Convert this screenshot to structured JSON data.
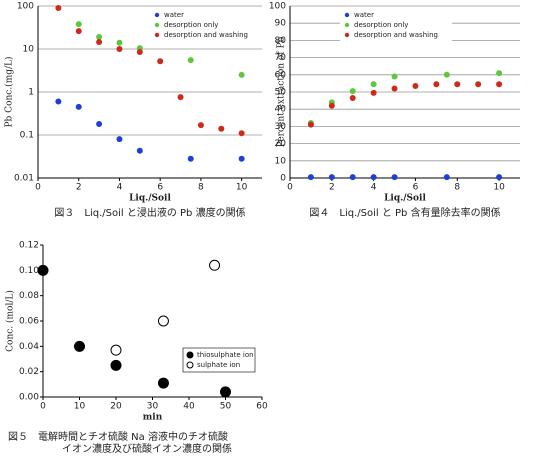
{
  "chart_data": [
    {
      "type": "scatter",
      "x_label": "Liq./Soil",
      "y_label": "Pb Conc.(mg/L)",
      "caption": "図３　Liq./Soil と浸出液の Pb 濃度の関係",
      "xlim": [
        0,
        11
      ],
      "xticks": [
        0,
        2,
        4,
        6,
        8,
        10
      ],
      "ylim": [
        0.01,
        100
      ],
      "yticks": [
        0.01,
        0.1,
        1,
        10,
        100
      ],
      "log_y": true,
      "grid": true,
      "legend": "upper right",
      "series": [
        {
          "name": "water",
          "color": "#1f3fd6",
          "x": [
            1,
            2,
            3,
            4,
            5,
            7.5,
            10
          ],
          "values": [
            0.6,
            0.45,
            0.18,
            0.08,
            0.043,
            0.028,
            0.028
          ]
        },
        {
          "name": "desorption only",
          "color": "#5cc83c",
          "x": [
            2,
            3,
            4,
            5,
            7.5,
            10
          ],
          "values": [
            38,
            19,
            14,
            10.5,
            5.5,
            2.5
          ]
        },
        {
          "name": "desorption and washing",
          "color": "#cc2a1a",
          "x": [
            1,
            2,
            3,
            4,
            5,
            6,
            7,
            8,
            9,
            10
          ],
          "values": [
            90,
            26,
            14.5,
            10,
            8.5,
            5.2,
            0.76,
            0.17,
            0.14,
            0.11
          ]
        }
      ]
    },
    {
      "type": "scatter",
      "x_label": "Liq./Soil",
      "y_label": "Percent extraction of Pb",
      "caption": "図４　Liq./Soil と Pb 含有量除去率の関係",
      "xlim": [
        0,
        11
      ],
      "xticks": [
        0,
        2,
        4,
        6,
        8,
        10
      ],
      "ylim": [
        0,
        100
      ],
      "yticks": [
        0,
        10,
        20,
        30,
        40,
        50,
        60,
        70,
        80,
        90,
        100
      ],
      "grid": true,
      "legend": "upper left",
      "series": [
        {
          "name": "water",
          "color": "#1f3fd6",
          "x": [
            1,
            2,
            3,
            4,
            5,
            7.5,
            10
          ],
          "values": [
            0.5,
            0.5,
            0.5,
            0.5,
            0.5,
            0.5,
            0.5
          ]
        },
        {
          "name": "desorption only",
          "color": "#5cc83c",
          "x": [
            1,
            2,
            3,
            4,
            5,
            7.5,
            10
          ],
          "values": [
            32,
            44,
            50.5,
            54.5,
            59,
            60,
            61
          ]
        },
        {
          "name": "desorption and washing",
          "color": "#cc2a1a",
          "x": [
            1,
            2,
            3,
            4,
            5,
            6,
            7,
            8,
            9,
            10
          ],
          "values": [
            31,
            42,
            46.5,
            49.5,
            52,
            53.5,
            54.5,
            54.5,
            54.5,
            54.5
          ]
        }
      ]
    },
    {
      "type": "scatter",
      "x_label": "min",
      "y_label": "Conc. (mol/L)",
      "caption": [
        "図５　電解時間とチオ硫酸 Na 溶液中のチオ硫酸",
        "イオン濃度及び硫酸イオン濃度の関係"
      ],
      "xlim": [
        0,
        60
      ],
      "xticks": [
        0,
        10,
        20,
        30,
        40,
        50,
        60
      ],
      "ylim": [
        0,
        0.12
      ],
      "yticks": [
        {
          "value": 0,
          "label": "0.00"
        },
        {
          "value": 0.02,
          "label": "0.02"
        },
        {
          "value": 0.04,
          "label": "0.04"
        },
        {
          "value": 0.06,
          "label": "0.06"
        },
        {
          "value": 0.08,
          "label": "0.08"
        },
        {
          "value": 0.1,
          "label": "0.10"
        },
        {
          "value": 0.12,
          "label": "0.12"
        }
      ],
      "grid": false,
      "legend": "lower right",
      "series": [
        {
          "name": "thiosulphate ion",
          "color": "#000000",
          "fill": "#000000",
          "x": [
            0,
            10,
            20,
            33,
            50
          ],
          "values": [
            0.1,
            0.04,
            0.025,
            0.011,
            0.004
          ]
        },
        {
          "name": "sulphate ion",
          "color": "#000000",
          "fill": "#ffffff",
          "x": [
            20,
            33,
            47
          ],
          "values": [
            0.037,
            0.06,
            0.104
          ]
        }
      ]
    }
  ]
}
